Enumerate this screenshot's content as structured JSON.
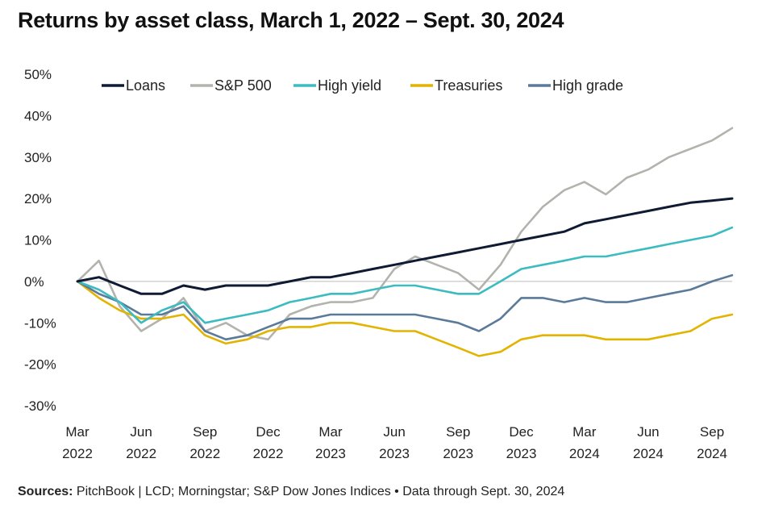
{
  "title": "Returns by asset class, March 1, 2022 – Sept. 30, 2024",
  "source_label": "Sources:",
  "source_text": "PitchBook | LCD; Morningstar; S&P Dow Jones Indices • Data through Sept. 30, 2024",
  "chart_data": {
    "type": "line",
    "title": "Returns by asset class, March 1, 2022 – Sept. 30, 2024",
    "xlabel": "",
    "ylabel": "",
    "ylim": [
      -30,
      50
    ],
    "yticks": [
      "50%",
      "40%",
      "30%",
      "20%",
      "10%",
      "0%",
      "-10%",
      "-20%",
      "-30%"
    ],
    "ytick_values": [
      50,
      40,
      30,
      20,
      10,
      0,
      -10,
      -20,
      -30
    ],
    "xticks": [
      {
        "month": "Mar",
        "year": "2022",
        "date": "2022-03-01"
      },
      {
        "month": "Jun",
        "year": "2022",
        "date": "2022-06-01"
      },
      {
        "month": "Sep",
        "year": "2022",
        "date": "2022-09-01"
      },
      {
        "month": "Dec",
        "year": "2022",
        "date": "2022-12-01"
      },
      {
        "month": "Mar",
        "year": "2023",
        "date": "2023-03-01"
      },
      {
        "month": "Jun",
        "year": "2023",
        "date": "2023-06-01"
      },
      {
        "month": "Sep",
        "year": "2023",
        "date": "2023-09-01"
      },
      {
        "month": "Dec",
        "year": "2023",
        "date": "2023-12-01"
      },
      {
        "month": "Mar",
        "year": "2024",
        "date": "2024-03-01"
      },
      {
        "month": "Jun",
        "year": "2024",
        "date": "2024-06-01"
      },
      {
        "month": "Sep",
        "year": "2024",
        "date": "2024-09-01"
      }
    ],
    "grid": false,
    "zero_line": true,
    "legend_position": "top",
    "x": [
      "2022-03-01",
      "2022-04-01",
      "2022-05-01",
      "2022-06-01",
      "2022-07-01",
      "2022-08-01",
      "2022-09-01",
      "2022-10-01",
      "2022-11-01",
      "2022-12-01",
      "2023-01-01",
      "2023-02-01",
      "2023-03-01",
      "2023-04-01",
      "2023-05-01",
      "2023-06-01",
      "2023-07-01",
      "2023-08-01",
      "2023-09-01",
      "2023-10-01",
      "2023-11-01",
      "2023-12-01",
      "2024-01-01",
      "2024-02-01",
      "2024-03-01",
      "2024-04-01",
      "2024-05-01",
      "2024-06-01",
      "2024-07-01",
      "2024-08-01",
      "2024-09-01",
      "2024-09-30"
    ],
    "series": [
      {
        "name": "Loans",
        "color": "#0f1b33",
        "values": [
          0,
          1,
          -1,
          -3,
          -3,
          -1,
          -2,
          -1,
          -1,
          -1,
          0,
          1,
          1,
          2,
          3,
          4,
          5,
          6,
          7,
          8,
          9,
          10,
          11,
          12,
          14,
          15,
          16,
          17,
          18,
          19,
          19.5,
          20
        ]
      },
      {
        "name": "S&P 500",
        "color": "#b3b3ae",
        "values": [
          0,
          5,
          -6,
          -12,
          -9,
          -4,
          -12,
          -10,
          -13,
          -14,
          -8,
          -6,
          -5,
          -5,
          -4,
          3,
          6,
          4,
          2,
          -2,
          4,
          12,
          18,
          22,
          24,
          21,
          25,
          27,
          30,
          32,
          34,
          37
        ]
      },
      {
        "name": "High yield",
        "color": "#3cbcc0",
        "values": [
          0,
          -2,
          -5,
          -10,
          -7,
          -5,
          -10,
          -9,
          -8,
          -7,
          -5,
          -4,
          -3,
          -3,
          -2,
          -1,
          -1,
          -2,
          -3,
          -3,
          0,
          3,
          4,
          5,
          6,
          6,
          7,
          8,
          9,
          10,
          11,
          13
        ]
      },
      {
        "name": "Treasuries",
        "color": "#e2b400",
        "values": [
          0,
          -4,
          -7,
          -9,
          -9,
          -8,
          -13,
          -15,
          -14,
          -12,
          -11,
          -11,
          -10,
          -10,
          -11,
          -12,
          -12,
          -14,
          -16,
          -18,
          -17,
          -14,
          -13,
          -13,
          -13,
          -14,
          -14,
          -14,
          -13,
          -12,
          -9,
          -8
        ]
      },
      {
        "name": "High grade",
        "color": "#5b7a9a",
        "values": [
          0,
          -3,
          -5,
          -8,
          -8,
          -6,
          -12,
          -14,
          -13,
          -11,
          -9,
          -9,
          -8,
          -8,
          -8,
          -8,
          -8,
          -9,
          -10,
          -12,
          -9,
          -4,
          -4,
          -5,
          -4,
          -5,
          -5,
          -4,
          -3,
          -2,
          0,
          1.5
        ]
      }
    ]
  }
}
